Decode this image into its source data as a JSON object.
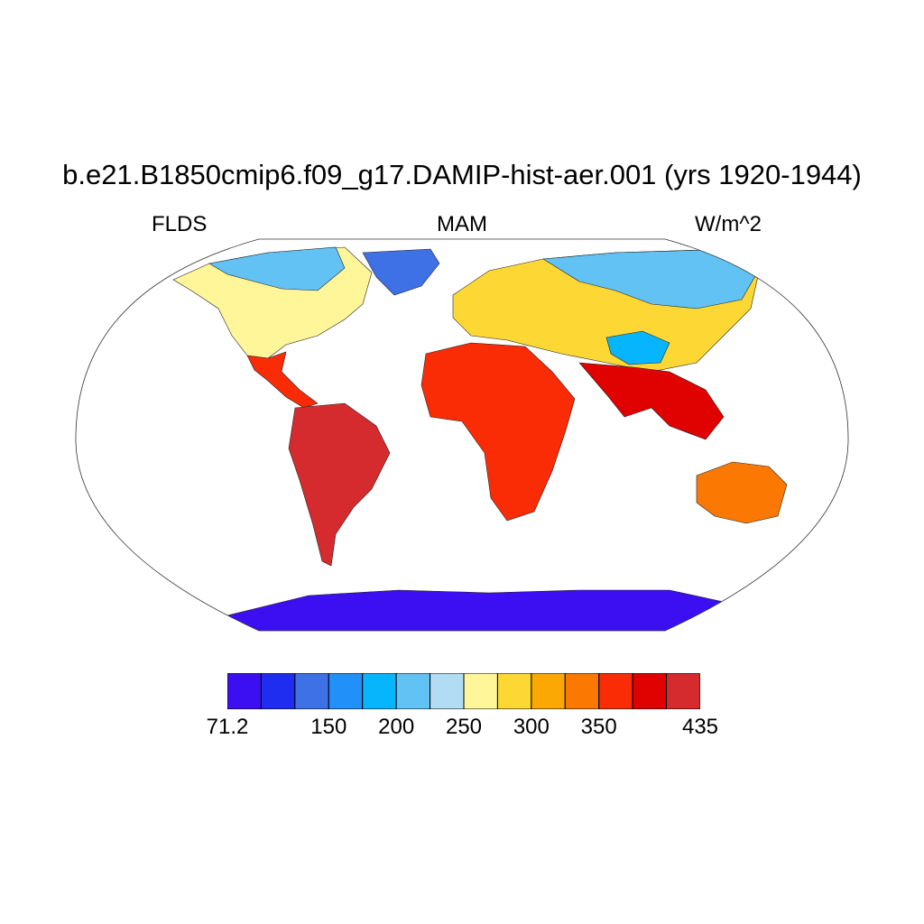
{
  "title": "b.e21.B1850cmip6.f09_g17.DAMIP-hist-aer.001 (yrs 1920-1944)",
  "left_label": "FLDS",
  "center_label": "MAM",
  "right_label": "W/m^2",
  "colorbar": {
    "colors": [
      "#3b0ff2",
      "#1f2df0",
      "#3e70e6",
      "#2190f8",
      "#06b5fb",
      "#63c2f4",
      "#b1dcf3",
      "#fff599",
      "#fdd835",
      "#fba804",
      "#fb7803",
      "#fa2c06",
      "#e00101",
      "#d62b2e"
    ],
    "tick_labels": [
      "71.2",
      "150",
      "200",
      "250",
      "300",
      "350",
      "435"
    ],
    "tick_positions": [
      0,
      3,
      5,
      7,
      9,
      11,
      14
    ]
  },
  "map": {
    "projection": "robinson",
    "regions": [
      {
        "name": "north-america",
        "color": "#fff599"
      },
      {
        "name": "central-america",
        "color": "#fa2c06"
      },
      {
        "name": "south-america",
        "color": "#d62b2e"
      },
      {
        "name": "greenland",
        "color": "#3e70e6"
      },
      {
        "name": "eurasia",
        "color": "#fdd835"
      },
      {
        "name": "siberia",
        "color": "#63c2f4"
      },
      {
        "name": "tibet",
        "color": "#06b5fb"
      },
      {
        "name": "africa",
        "color": "#fa2c06"
      },
      {
        "name": "south-asia",
        "color": "#e00101"
      },
      {
        "name": "australia",
        "color": "#fb7803"
      },
      {
        "name": "antarctica",
        "color": "#3b0ff2"
      }
    ]
  }
}
